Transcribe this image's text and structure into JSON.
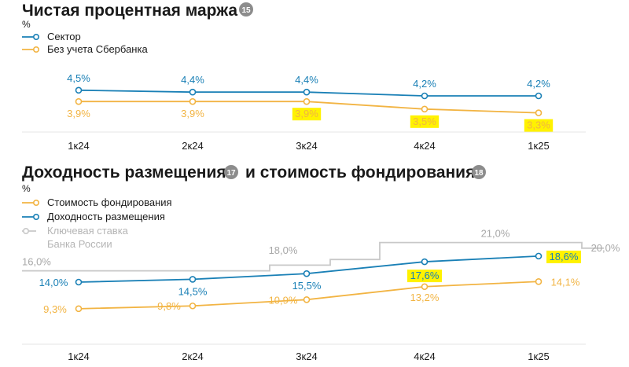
{
  "colors": {
    "blue": "#1a80b6",
    "orange": "#f2b443",
    "grey": "#c8c8c8",
    "highlight": "#fff200",
    "badge": "#8c8c8c"
  },
  "chart_data": [
    {
      "type": "line",
      "title": "Чистая процентная маржа",
      "badge": "15",
      "unit": "%",
      "categories": [
        "1к24",
        "2к24",
        "3к24",
        "4к24",
        "1к25"
      ],
      "series": [
        {
          "name": "Сектор",
          "color": "blue",
          "values": [
            4.5,
            4.4,
            4.4,
            4.2,
            4.2
          ],
          "labels": [
            "4,5%",
            "4,4%",
            "4,4%",
            "4,2%",
            "4,2%"
          ],
          "highlighted": [
            false,
            false,
            false,
            false,
            false
          ]
        },
        {
          "name": "Без учета Сбербанка",
          "color": "orange",
          "values": [
            3.9,
            3.9,
            3.9,
            3.5,
            3.3
          ],
          "labels": [
            "3,9%",
            "3,9%",
            "3,9%",
            "3,5%",
            "3,3%"
          ],
          "highlighted": [
            false,
            false,
            true,
            true,
            true
          ]
        }
      ]
    },
    {
      "type": "line",
      "title": "Доходность размещения",
      "badge": "17",
      "title2": "и стоимость фондирования",
      "badge2": "18",
      "unit": "%",
      "categories": [
        "1к24",
        "2к24",
        "3к24",
        "4к24",
        "1к25"
      ],
      "series": [
        {
          "name": "Стоимость фондирования",
          "color": "orange",
          "values": [
            9.3,
            9.8,
            10.9,
            13.2,
            14.1
          ],
          "labels": [
            "9,3%",
            "9,8%",
            "10,9%",
            "13,2%",
            "14,1%"
          ],
          "highlighted": [
            false,
            false,
            false,
            false,
            false
          ]
        },
        {
          "name": "Доходность размещения",
          "color": "blue",
          "values": [
            14.0,
            14.5,
            15.5,
            17.6,
            18.6
          ],
          "labels": [
            "14,0%",
            "14,5%",
            "15,5%",
            "17,6%",
            "18,6%"
          ],
          "highlighted": [
            false,
            false,
            false,
            true,
            true
          ]
        }
      ],
      "key_rate": {
        "name_line1": "Ключевая ставка",
        "name_line2": "Банка России",
        "color": "grey",
        "levels": [
          {
            "value": 16.0,
            "label": "16,0%"
          },
          {
            "value": 18.0,
            "label": "18,0%"
          },
          {
            "value": 21.0,
            "label": "21,0%"
          },
          {
            "value": 20.0,
            "label": "20,0%"
          }
        ]
      }
    }
  ]
}
